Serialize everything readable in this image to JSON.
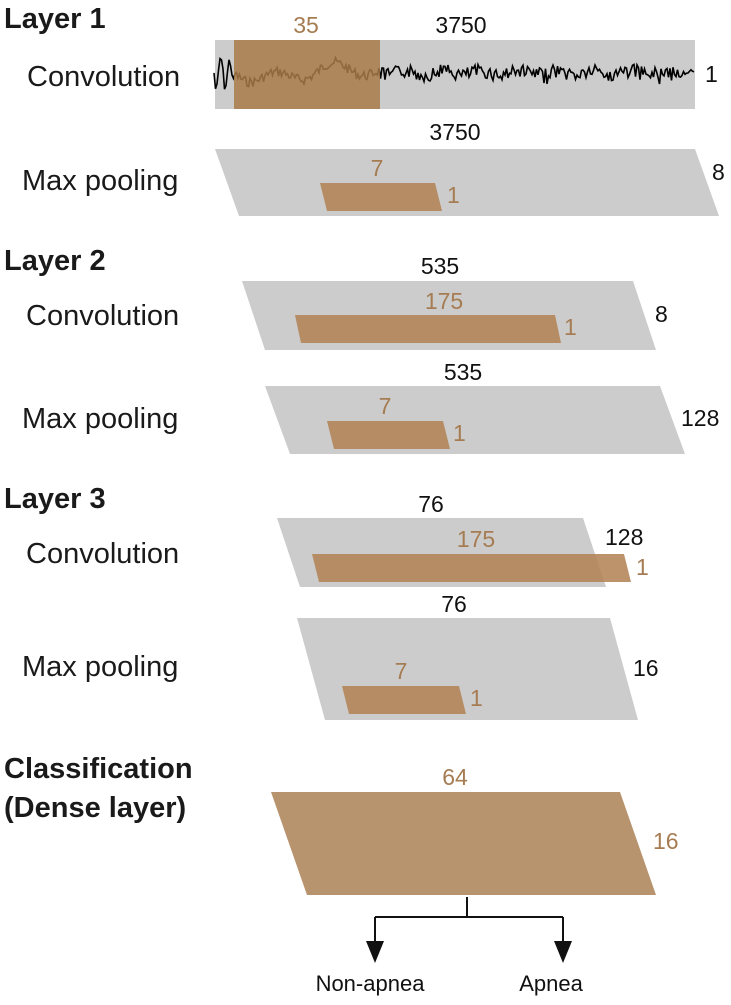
{
  "layers": [
    {
      "title": "Layer 1",
      "convolution": {
        "label": "Convolution",
        "width": "3750",
        "kernel_size": "35",
        "depth": "1"
      },
      "max_pooling": {
        "label": "Max pooling",
        "width": "3750",
        "kernel_size": "7",
        "kernel_depth": "1",
        "depth": "8"
      }
    },
    {
      "title": "Layer 2",
      "convolution": {
        "label": "Convolution",
        "width": "535",
        "kernel_size": "175",
        "kernel_depth": "1",
        "depth": "8"
      },
      "max_pooling": {
        "label": "Max pooling",
        "width": "535",
        "kernel_size": "7",
        "kernel_depth": "1",
        "depth": "128"
      }
    },
    {
      "title": "Layer 3",
      "convolution": {
        "label": "Convolution",
        "width": "76",
        "kernel_size": "175",
        "kernel_depth": "1",
        "depth": "128"
      },
      "max_pooling": {
        "label": "Max pooling",
        "width": "76",
        "kernel_size": "7",
        "kernel_depth": "1",
        "depth": "16"
      }
    }
  ],
  "classification": {
    "title_line1": "Classification",
    "title_line2": "(Dense layer)",
    "units": "64",
    "depth": "16"
  },
  "outputs": [
    "Non-apnea",
    "Apnea"
  ],
  "colors": {
    "feature_map": "#cccccc",
    "kernel": "#b08050",
    "dense": "#b8946e",
    "signal": "#000000"
  }
}
